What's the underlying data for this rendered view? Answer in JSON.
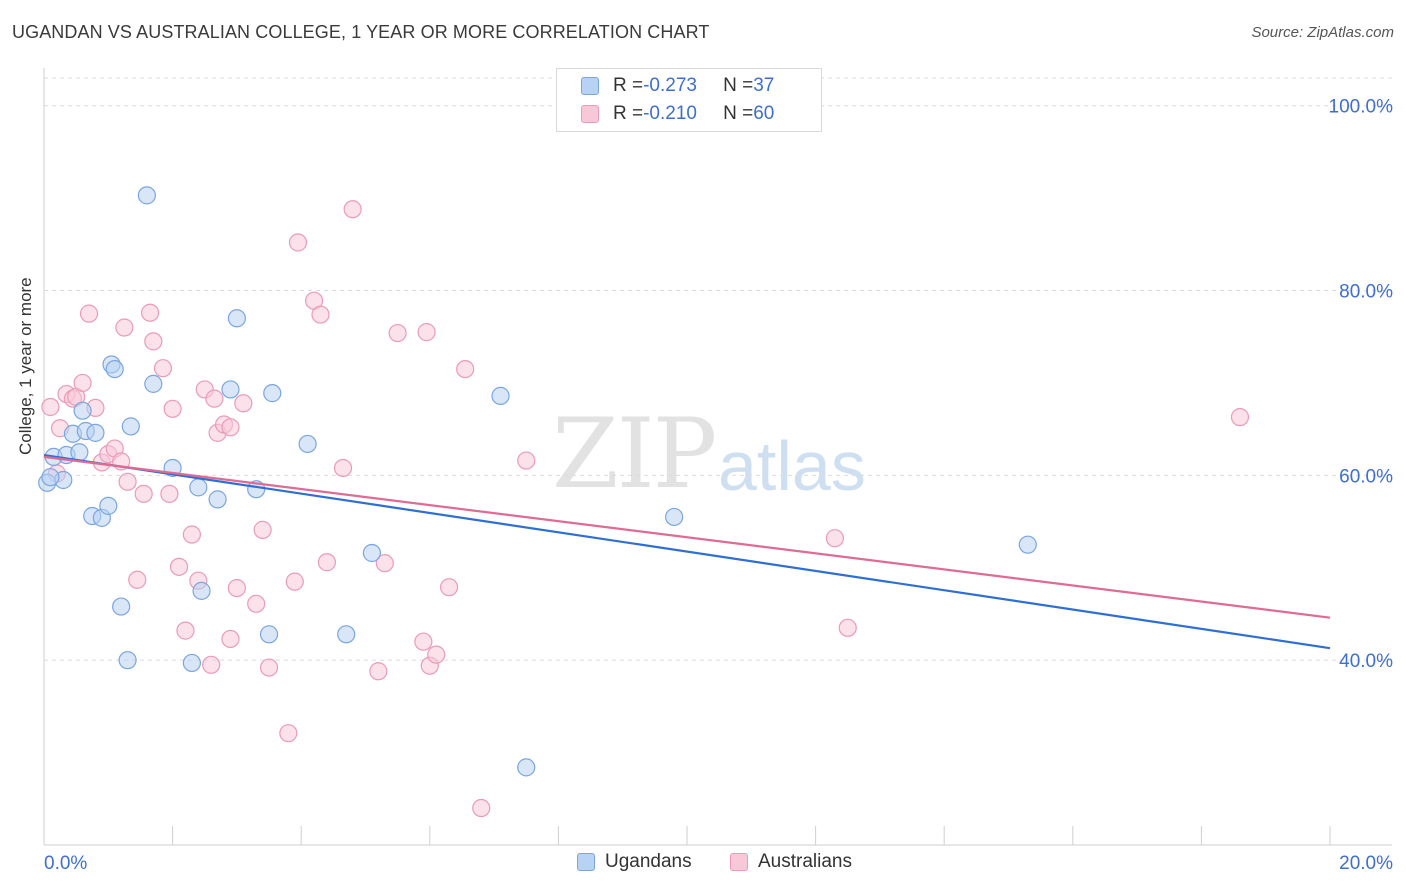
{
  "title": "UGANDAN VS AUSTRALIAN COLLEGE, 1 YEAR OR MORE CORRELATION CHART",
  "source": "Source: ZipAtlas.com",
  "watermark": {
    "zip": "ZIP",
    "atlas": "atlas"
  },
  "legend": {
    "rows": [
      {
        "r_label": "R = ",
        "r_value": "-0.273",
        "n_label": "N = ",
        "n_value": "37"
      },
      {
        "r_label": "R = ",
        "r_value": "-0.210",
        "n_label": "N = ",
        "n_value": "60"
      }
    ]
  },
  "colors": {
    "ugandans_fill": "#b8d2f3",
    "ugandans_stroke": "#7aa6e0",
    "ugandans_line": "#2f6fd1",
    "australians_fill": "#f8c8d8",
    "australians_stroke": "#eb9bb6",
    "australians_line": "#e06a93",
    "axis_text": "#3d6fcf"
  },
  "chart_data": {
    "type": "scatter",
    "title": "UGANDAN VS AUSTRALIAN COLLEGE, 1 YEAR OR MORE CORRELATION CHART",
    "xlabel": "",
    "ylabel": "College, 1 year or more",
    "xlim": [
      0,
      20
    ],
    "ylim": [
      20,
      103
    ],
    "x_tick_labels": [
      "0.0%",
      "20.0%"
    ],
    "y_ticks": [
      40,
      60,
      80,
      100
    ],
    "y_tick_labels": [
      "40.0%",
      "60.0%",
      "80.0%",
      "100.0%"
    ],
    "grid": true,
    "legend_position": "bottom-center",
    "series": [
      {
        "name": "Ugandans",
        "r": -0.273,
        "n": 37,
        "trend": {
          "x": [
            0,
            20
          ],
          "y": [
            62.2,
            41.3
          ]
        },
        "points": [
          [
            0.05,
            59.2
          ],
          [
            0.15,
            62.0
          ],
          [
            0.3,
            59.5
          ],
          [
            0.35,
            62.2
          ],
          [
            0.45,
            64.5
          ],
          [
            0.55,
            62.5
          ],
          [
            0.6,
            67.0
          ],
          [
            0.65,
            64.8
          ],
          [
            0.75,
            55.6
          ],
          [
            0.8,
            64.6
          ],
          [
            0.9,
            55.4
          ],
          [
            1.0,
            56.7
          ],
          [
            1.05,
            72.0
          ],
          [
            1.1,
            71.5
          ],
          [
            1.2,
            45.8
          ],
          [
            1.3,
            40.0
          ],
          [
            1.35,
            65.3
          ],
          [
            1.6,
            90.3
          ],
          [
            1.7,
            69.9
          ],
          [
            2.0,
            60.8
          ],
          [
            2.3,
            39.7
          ],
          [
            2.4,
            58.7
          ],
          [
            2.45,
            47.5
          ],
          [
            2.7,
            57.4
          ],
          [
            2.9,
            69.3
          ],
          [
            3.0,
            77.0
          ],
          [
            3.3,
            58.5
          ],
          [
            3.5,
            42.8
          ],
          [
            3.55,
            68.9
          ],
          [
            4.1,
            63.4
          ],
          [
            4.7,
            42.8
          ],
          [
            5.1,
            51.6
          ],
          [
            7.1,
            68.6
          ],
          [
            7.5,
            28.4
          ],
          [
            9.8,
            55.5
          ],
          [
            15.3,
            52.5
          ],
          [
            0.1,
            59.8
          ]
        ]
      },
      {
        "name": "Australians",
        "r": -0.21,
        "n": 60,
        "trend": {
          "x": [
            0,
            20
          ],
          "y": [
            62.0,
            44.6
          ]
        },
        "points": [
          [
            0.1,
            67.4
          ],
          [
            0.2,
            60.2
          ],
          [
            0.25,
            65.1
          ],
          [
            0.35,
            68.8
          ],
          [
            0.45,
            68.3
          ],
          [
            0.5,
            68.5
          ],
          [
            0.6,
            70.0
          ],
          [
            0.7,
            77.5
          ],
          [
            0.8,
            67.3
          ],
          [
            0.9,
            61.4
          ],
          [
            1.0,
            62.3
          ],
          [
            1.1,
            62.9
          ],
          [
            1.2,
            61.5
          ],
          [
            1.25,
            76.0
          ],
          [
            1.3,
            59.3
          ],
          [
            1.45,
            48.7
          ],
          [
            1.55,
            58.0
          ],
          [
            1.65,
            77.6
          ],
          [
            1.7,
            74.5
          ],
          [
            1.85,
            71.6
          ],
          [
            1.95,
            58.0
          ],
          [
            2.0,
            67.2
          ],
          [
            2.1,
            50.1
          ],
          [
            2.2,
            43.2
          ],
          [
            2.3,
            53.6
          ],
          [
            2.4,
            48.6
          ],
          [
            2.5,
            69.3
          ],
          [
            2.6,
            39.5
          ],
          [
            2.65,
            68.3
          ],
          [
            2.7,
            64.6
          ],
          [
            2.8,
            65.5
          ],
          [
            2.9,
            42.3
          ],
          [
            3.0,
            47.8
          ],
          [
            3.1,
            67.8
          ],
          [
            3.3,
            46.1
          ],
          [
            3.4,
            54.1
          ],
          [
            3.5,
            39.2
          ],
          [
            3.8,
            32.1
          ],
          [
            3.9,
            48.5
          ],
          [
            3.95,
            85.2
          ],
          [
            4.2,
            78.9
          ],
          [
            4.3,
            77.4
          ],
          [
            4.4,
            50.6
          ],
          [
            4.65,
            60.8
          ],
          [
            4.8,
            88.8
          ],
          [
            5.2,
            38.8
          ],
          [
            5.3,
            50.5
          ],
          [
            5.5,
            75.4
          ],
          [
            5.9,
            42.0
          ],
          [
            5.95,
            75.5
          ],
          [
            6.0,
            39.4
          ],
          [
            6.1,
            40.6
          ],
          [
            6.3,
            47.9
          ],
          [
            6.55,
            71.5
          ],
          [
            6.8,
            24.0
          ],
          [
            7.5,
            61.6
          ],
          [
            12.3,
            53.2
          ],
          [
            12.5,
            43.5
          ],
          [
            18.6,
            66.3
          ],
          [
            2.9,
            65.2
          ]
        ]
      }
    ]
  }
}
